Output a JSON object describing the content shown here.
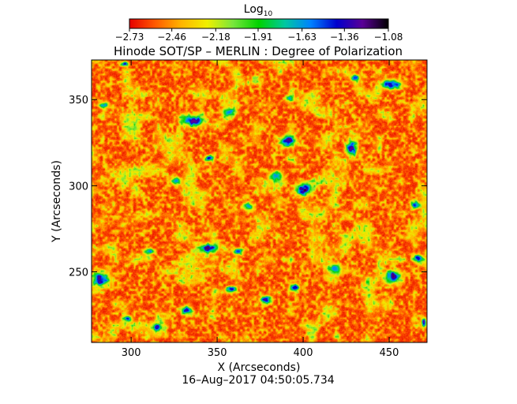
{
  "chart_data": {
    "type": "heatmap",
    "title": "Hinode SOT/SP – MERLIN : Degree of Polarization",
    "xlabel": "X (Arcseconds)",
    "ylabel": "Y (Arcseconds)",
    "xlim": [
      277,
      472
    ],
    "ylim": [
      209,
      373
    ],
    "x_ticks": [
      300,
      350,
      400,
      450
    ],
    "y_ticks": [
      250,
      300,
      350
    ],
    "x_tick_labels": [
      "300",
      "350",
      "400",
      "450"
    ],
    "y_tick_labels": [
      "250",
      "300",
      "350"
    ],
    "timestamp": "16–Aug–2017 04:50:05.734",
    "colorbar": {
      "label_main": "Log",
      "label_sub": "10",
      "ticks": [
        -2.73,
        -2.46,
        -2.18,
        -1.91,
        -1.63,
        -1.36,
        -1.08
      ],
      "tick_labels": [
        "−2.73",
        "−2.46",
        "−2.18",
        "−1.91",
        "−1.63",
        "−1.36",
        "−1.08"
      ],
      "range": [
        -2.73,
        -1.08
      ],
      "colormap": [
        "#e60000",
        "#ff5a00",
        "#ffb400",
        "#f0f000",
        "#78e63c",
        "#00d200",
        "#00c8a0",
        "#0082ff",
        "#0000cd",
        "#5a0096",
        "#000000"
      ]
    },
    "features": [
      {
        "x": 336,
        "y": 338,
        "w": 14,
        "h": 7,
        "v": -1.25,
        "s": 9
      },
      {
        "x": 357,
        "y": 343,
        "w": 9,
        "h": 5,
        "v": -1.55,
        "s": 5
      },
      {
        "x": 391,
        "y": 326,
        "w": 10,
        "h": 7,
        "v": -1.2,
        "s": 7
      },
      {
        "x": 428,
        "y": 322,
        "w": 7,
        "h": 10,
        "v": -1.25,
        "s": 6
      },
      {
        "x": 400,
        "y": 298,
        "w": 10,
        "h": 8,
        "v": -1.15,
        "s": 8
      },
      {
        "x": 384,
        "y": 306,
        "w": 8,
        "h": 6,
        "v": -1.5,
        "s": 4
      },
      {
        "x": 345,
        "y": 316,
        "w": 6,
        "h": 4,
        "v": -1.4,
        "s": 3
      },
      {
        "x": 282,
        "y": 246,
        "w": 12,
        "h": 9,
        "v": -1.2,
        "s": 8
      },
      {
        "x": 345,
        "y": 264,
        "w": 12,
        "h": 6,
        "v": -1.2,
        "s": 7
      },
      {
        "x": 362,
        "y": 262,
        "w": 7,
        "h": 4,
        "v": -1.5,
        "s": 4
      },
      {
        "x": 332,
        "y": 228,
        "w": 7,
        "h": 5,
        "v": -1.3,
        "s": 3
      },
      {
        "x": 378,
        "y": 234,
        "w": 7,
        "h": 5,
        "v": -1.25,
        "s": 4
      },
      {
        "x": 395,
        "y": 241,
        "w": 6,
        "h": 5,
        "v": -1.4,
        "s": 4
      },
      {
        "x": 358,
        "y": 240,
        "w": 6,
        "h": 4,
        "v": -1.3,
        "s": 3
      },
      {
        "x": 452,
        "y": 248,
        "w": 10,
        "h": 7,
        "v": -1.2,
        "s": 7
      },
      {
        "x": 466,
        "y": 258,
        "w": 6,
        "h": 5,
        "v": -1.4,
        "s": 3
      },
      {
        "x": 451,
        "y": 359,
        "w": 14,
        "h": 6,
        "v": -1.35,
        "s": 6
      },
      {
        "x": 430,
        "y": 363,
        "w": 6,
        "h": 4,
        "v": -1.5,
        "s": 3
      },
      {
        "x": 392,
        "y": 351,
        "w": 5,
        "h": 4,
        "v": -1.5,
        "s": 3
      },
      {
        "x": 296,
        "y": 371,
        "w": 5,
        "h": 3,
        "v": -1.35,
        "s": 3
      },
      {
        "x": 315,
        "y": 218,
        "w": 6,
        "h": 4,
        "v": -1.3,
        "s": 3
      },
      {
        "x": 298,
        "y": 223,
        "w": 5,
        "h": 4,
        "v": -1.4,
        "s": 3
      },
      {
        "x": 470,
        "y": 221,
        "w": 3,
        "h": 5,
        "v": -1.25,
        "s": 3
      },
      {
        "x": 310,
        "y": 262,
        "w": 6,
        "h": 4,
        "v": -1.55,
        "s": 3
      },
      {
        "x": 418,
        "y": 252,
        "w": 8,
        "h": 6,
        "v": -1.6,
        "s": 4
      },
      {
        "x": 465,
        "y": 289,
        "w": 6,
        "h": 5,
        "v": -1.45,
        "s": 4
      },
      {
        "x": 368,
        "y": 288,
        "w": 7,
        "h": 5,
        "v": -1.65,
        "s": 3
      },
      {
        "x": 326,
        "y": 303,
        "w": 6,
        "h": 5,
        "v": -1.6,
        "s": 3
      },
      {
        "x": 284,
        "y": 347,
        "w": 6,
        "h": 4,
        "v": -1.6,
        "s": 3
      }
    ]
  }
}
